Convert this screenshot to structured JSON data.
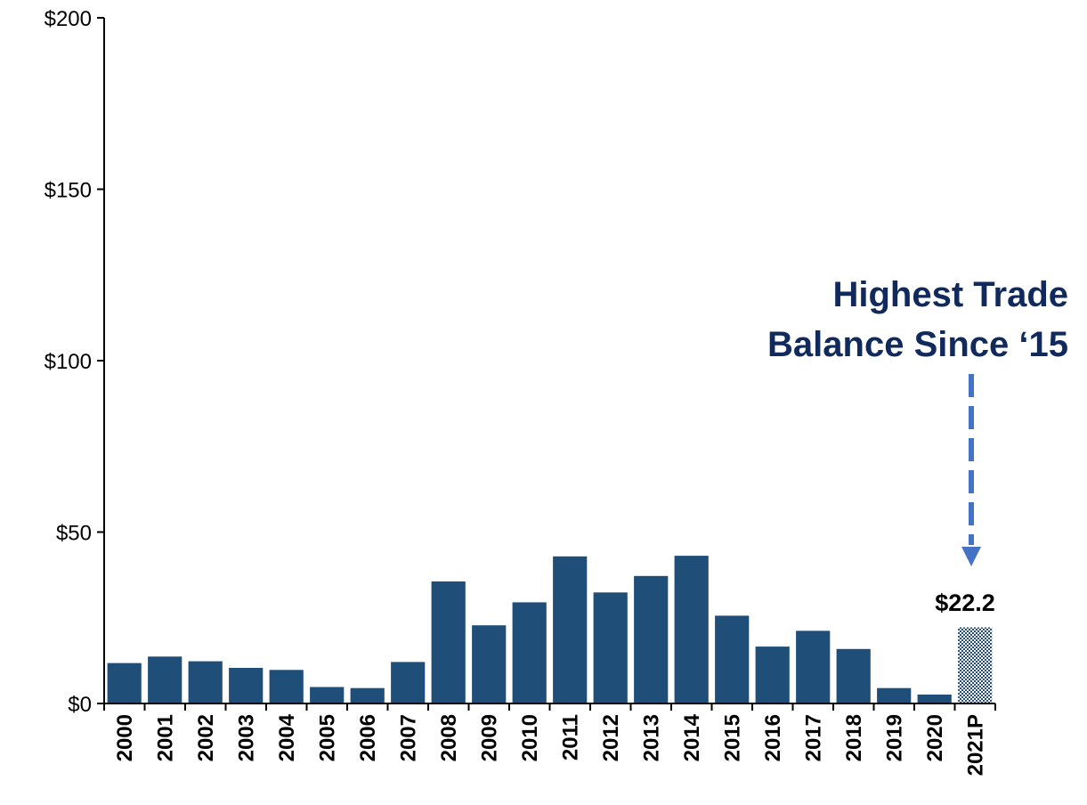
{
  "chart_data": {
    "type": "bar",
    "title": "",
    "xlabel": "",
    "ylabel": "",
    "ylim": [
      0,
      200
    ],
    "yticks": [
      "$0",
      "$50",
      "$100",
      "$150",
      "$200"
    ],
    "yticks_values": [
      0,
      50,
      100,
      150,
      200
    ],
    "categories": [
      "2000",
      "2001",
      "2002",
      "2003",
      "2004",
      "2005",
      "2006",
      "2007",
      "2008",
      "2009",
      "2010",
      "2011",
      "2012",
      "2013",
      "2014",
      "2015",
      "2016",
      "2017",
      "2018",
      "2019",
      "2020",
      "2021P"
    ],
    "values": [
      11.8,
      13.7,
      12.3,
      10.4,
      9.8,
      4.8,
      4.5,
      12.1,
      35.6,
      22.8,
      29.5,
      42.9,
      32.4,
      37.2,
      43.1,
      25.6,
      16.6,
      21.2,
      15.9,
      4.5,
      2.6,
      22.2
    ],
    "projected_categories": [
      "2021P"
    ],
    "grid": false,
    "bar_color": "#1f4e79",
    "annotation": {
      "lines": [
        "Highest Trade",
        "Balance Since ‘15"
      ],
      "value_label": "$22.2",
      "text_color": "#102a5e",
      "arrow_color": "#4472c4"
    }
  }
}
